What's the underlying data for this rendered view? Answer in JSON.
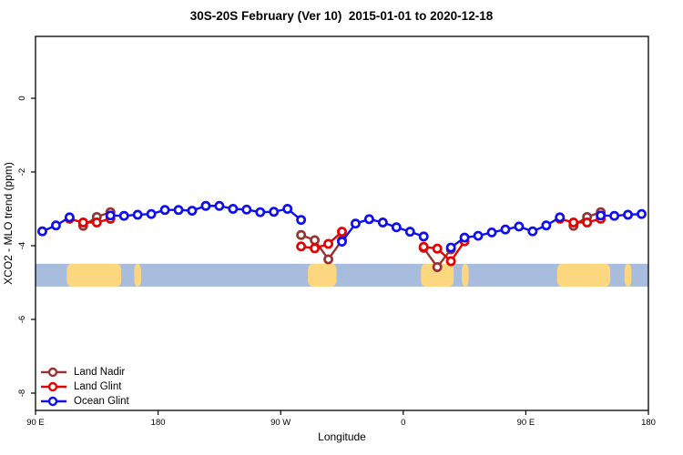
{
  "header": {
    "title": "30S-20S February (Ver 10)  2015-01-01 to 2020-12-18"
  },
  "chart_data": {
    "type": "line",
    "title": "30S-20S February (Ver 10)  2015-01-01 to 2020-12-18",
    "xlabel": "Longitude",
    "ylabel": "XCO2 - MLO trend (ppm)",
    "x_axis": {
      "note": "longitude axis wraps 450 degrees starting at 90E",
      "tick_labels": [
        "90 E",
        "180",
        "90 W",
        "0",
        "90 E",
        "180"
      ],
      "tick_t_deg": [
        0,
        90,
        180,
        270,
        360,
        450
      ],
      "t_range": [
        0,
        450
      ]
    },
    "y_axis": {
      "tick_labels": [
        "0",
        "-2",
        "-4",
        "-6",
        "-8"
      ],
      "tick_values": [
        0,
        -2,
        -4,
        -6,
        -8
      ],
      "ylim": [
        -8.5,
        1.7
      ]
    },
    "x_labels": [
      "95E",
      "105E",
      "115E",
      "125E",
      "135E",
      "145E",
      "155E",
      "165E",
      "175E",
      "175W",
      "165W",
      "155W",
      "145W",
      "135W",
      "125W",
      "115W",
      "105W",
      "95W",
      "85W",
      "75W",
      "65W",
      "55W",
      "45W",
      "35W",
      "25W",
      "15W",
      "5W",
      "5E",
      "15E",
      "25E",
      "35E",
      "45E",
      "55E",
      "65E",
      "75E",
      "85E",
      "95E",
      "105E",
      "115E",
      "125E",
      "135E",
      "145E",
      "155E",
      "165E",
      "175E"
    ],
    "x_t_deg": [
      5,
      15,
      25,
      35,
      45,
      55,
      65,
      75,
      85,
      95,
      105,
      115,
      125,
      135,
      145,
      155,
      165,
      175,
      185,
      195,
      205,
      215,
      225,
      235,
      245,
      255,
      265,
      275,
      285,
      295,
      305,
      315,
      325,
      335,
      345,
      355,
      365,
      375,
      385,
      395,
      405,
      415,
      425,
      435,
      445
    ],
    "series": [
      {
        "name": "Land Nadir",
        "color": "#993333",
        "values": [
          null,
          null,
          null,
          -3.46,
          -3.22,
          -3.09,
          null,
          null,
          null,
          null,
          null,
          null,
          null,
          null,
          null,
          null,
          null,
          null,
          null,
          -3.71,
          -3.85,
          -4.37,
          -3.85,
          null,
          null,
          null,
          null,
          null,
          -4.06,
          -4.58,
          -4.1,
          null,
          null,
          null,
          null,
          null,
          null,
          null,
          null,
          -3.46,
          -3.22,
          -3.09,
          null,
          null,
          null
        ]
      },
      {
        "name": "Land Glint",
        "color": "#E60000",
        "values": [
          null,
          null,
          -3.27,
          -3.37,
          -3.37,
          -3.27,
          null,
          null,
          null,
          null,
          null,
          null,
          null,
          null,
          null,
          null,
          null,
          null,
          null,
          -4.02,
          -4.07,
          -3.95,
          -3.62,
          null,
          null,
          null,
          null,
          null,
          -4.03,
          -4.08,
          -4.42,
          -3.88,
          null,
          null,
          null,
          null,
          null,
          null,
          -3.27,
          -3.37,
          -3.37,
          -3.27,
          null,
          null,
          null
        ]
      },
      {
        "name": "Ocean Glint",
        "color": "#0F0FEE",
        "values": [
          -3.61,
          -3.45,
          -3.23,
          null,
          null,
          -3.18,
          -3.19,
          -3.16,
          -3.14,
          -3.03,
          -3.03,
          -3.05,
          -2.92,
          -2.92,
          -3.0,
          -3.02,
          -3.09,
          -3.08,
          -3.0,
          -3.3,
          null,
          null,
          -3.89,
          -3.4,
          -3.28,
          -3.37,
          -3.5,
          -3.62,
          -3.75,
          null,
          -4.05,
          -3.78,
          -3.73,
          -3.64,
          -3.56,
          -3.48,
          -3.61,
          -3.45,
          -3.23,
          null,
          null,
          -3.18,
          -3.19,
          -3.16,
          -3.14
        ]
      }
    ],
    "map_strip": {
      "description": "land/ocean strip for latitude band",
      "ocean_color": "#A8BDDD",
      "land_color": "#FCD77F",
      "top_ppm": -4.49,
      "bottom_ppm": -5.11,
      "land_patches_t_deg": [
        [
          23,
          63
        ],
        [
          72.5,
          77.5
        ],
        [
          200,
          221
        ],
        [
          283,
          307
        ],
        [
          313,
          318
        ],
        [
          383,
          422
        ],
        [
          432.5,
          437.5
        ]
      ]
    },
    "legend_position": "bottom-left",
    "grid": false
  }
}
